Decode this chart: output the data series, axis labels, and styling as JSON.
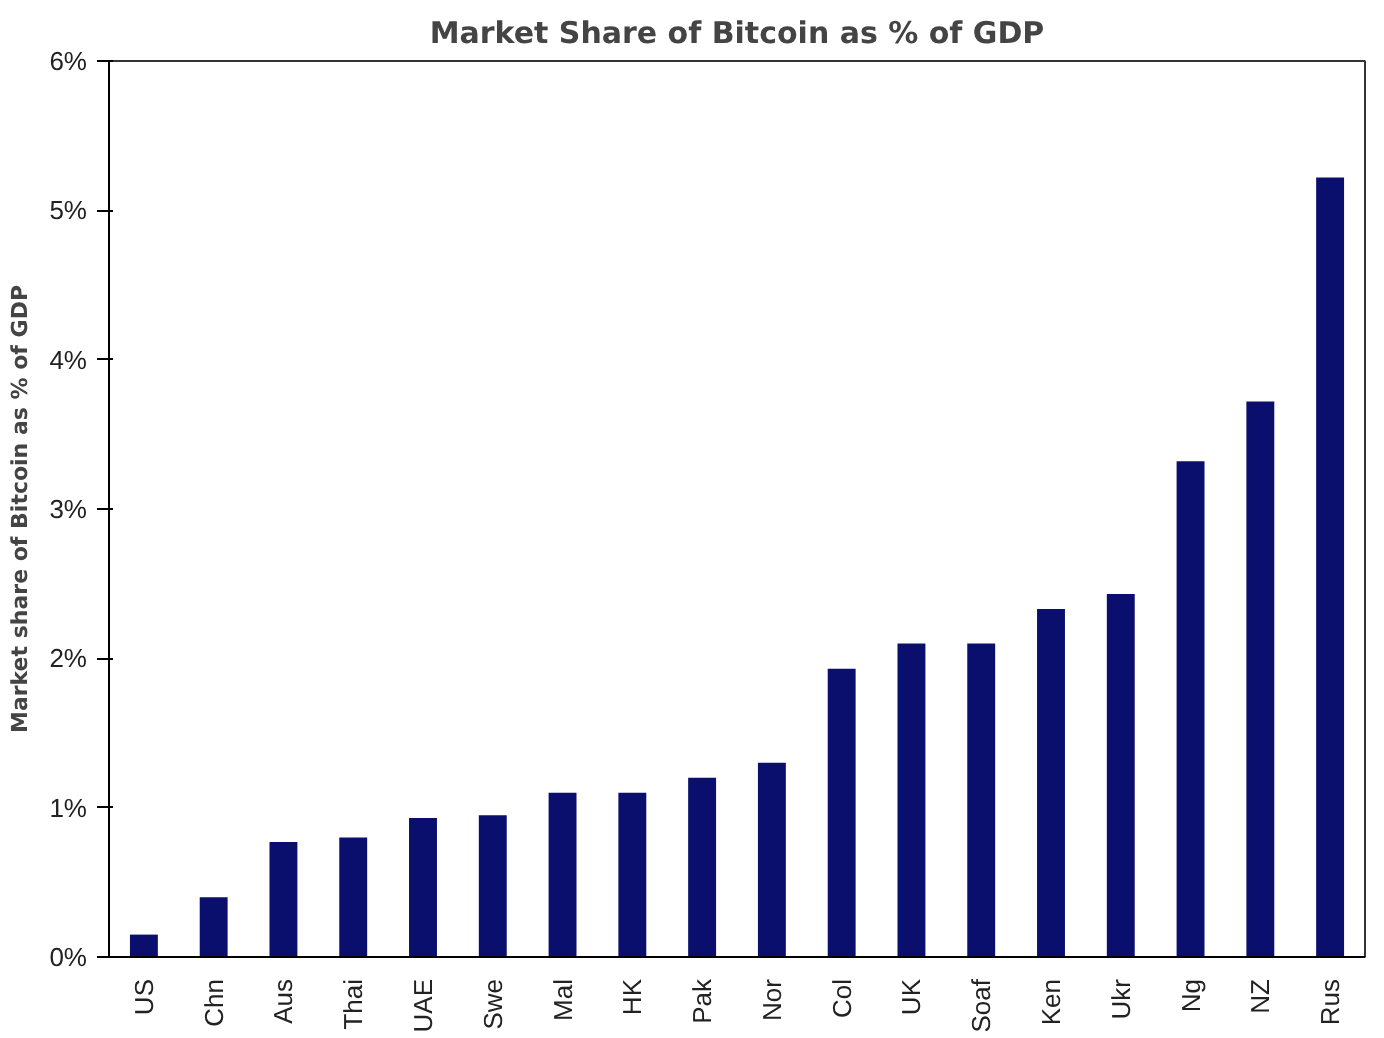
{
  "chart_data": {
    "type": "bar",
    "title": "Market Share of Bitcoin as % of GDP",
    "ylabel": "Market share of Bitcoin as % of GDP",
    "categories": [
      "US",
      "Chn",
      "Aus",
      "Thai",
      "UAE",
      "Swe",
      "Mal",
      "HK",
      "Pak",
      "Nor",
      "Col",
      "UK",
      "Soaf",
      "Ken",
      "Ukr",
      "Ng",
      "NZ",
      "Rus"
    ],
    "values": [
      0.15,
      0.4,
      0.77,
      0.8,
      0.93,
      0.95,
      1.1,
      1.1,
      1.2,
      1.3,
      1.93,
      2.1,
      2.1,
      2.33,
      2.43,
      3.32,
      3.72,
      5.22
    ],
    "color": "#0a0f6e",
    "ylim": [
      0,
      6
    ],
    "yticks": [
      {
        "value": 0,
        "label": "0%"
      },
      {
        "value": 1,
        "label": "1%"
      },
      {
        "value": 2,
        "label": "2%"
      },
      {
        "value": 3,
        "label": "3%"
      },
      {
        "value": 4,
        "label": "4%"
      },
      {
        "value": 5,
        "label": "5%"
      },
      {
        "value": 6,
        "label": "6%"
      }
    ],
    "grid": false
  }
}
